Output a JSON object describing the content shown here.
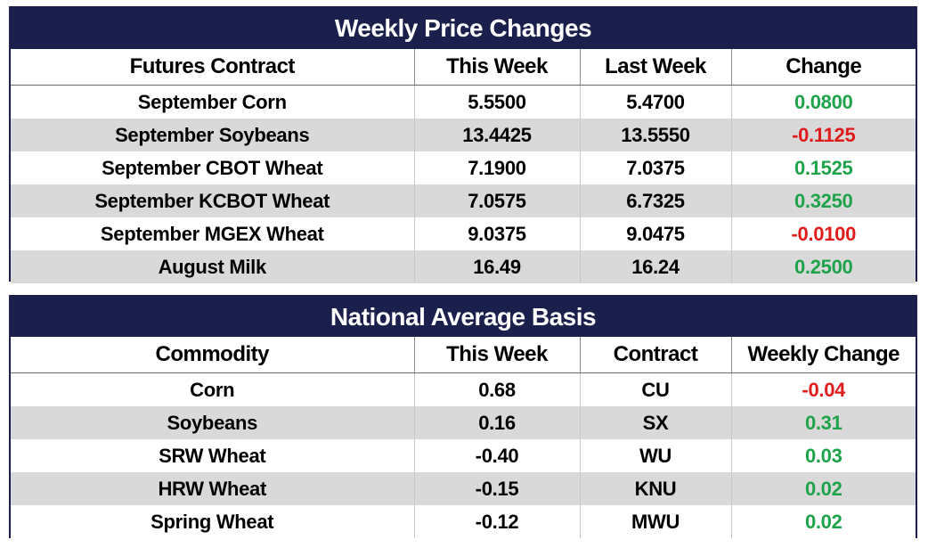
{
  "prices": {
    "title": "Weekly Price Changes",
    "headers": [
      "Futures Contract",
      "This Week",
      "Last Week",
      "Change"
    ],
    "rows": [
      {
        "contract": "September Corn",
        "this_week": "5.5500",
        "last_week": "5.4700",
        "change": "0.0800",
        "direction": "up"
      },
      {
        "contract": "September Soybeans",
        "this_week": "13.4425",
        "last_week": "13.5550",
        "change": "-0.1125",
        "direction": "down"
      },
      {
        "contract": "September CBOT Wheat",
        "this_week": "7.1900",
        "last_week": "7.0375",
        "change": "0.1525",
        "direction": "up"
      },
      {
        "contract": "September KCBOT Wheat",
        "this_week": "7.0575",
        "last_week": "6.7325",
        "change": "0.3250",
        "direction": "up"
      },
      {
        "contract": "September MGEX Wheat",
        "this_week": "9.0375",
        "last_week": "9.0475",
        "change": "-0.0100",
        "direction": "down"
      },
      {
        "contract": "August Milk",
        "this_week": "16.49",
        "last_week": "16.24",
        "change": "0.2500",
        "direction": "up"
      }
    ]
  },
  "basis": {
    "title": "National Average Basis",
    "headers": [
      "Commodity",
      "This Week",
      "Contract",
      "Weekly Change"
    ],
    "rows": [
      {
        "commodity": "Corn",
        "this_week": "0.68",
        "contract": "CU",
        "weekly_change": "-0.04",
        "direction": "down"
      },
      {
        "commodity": "Soybeans",
        "this_week": "0.16",
        "contract": "SX",
        "weekly_change": "0.31",
        "direction": "up"
      },
      {
        "commodity": "SRW Wheat",
        "this_week": "-0.40",
        "contract": "WU",
        "weekly_change": "0.03",
        "direction": "up"
      },
      {
        "commodity": "HRW Wheat",
        "this_week": "-0.15",
        "contract": "KNU",
        "weekly_change": "0.02",
        "direction": "up"
      },
      {
        "commodity": "Spring Wheat",
        "this_week": "-0.12",
        "contract": "MWU",
        "weekly_change": "0.02",
        "direction": "up"
      }
    ]
  },
  "colors": {
    "header_navy": "#1b1f4b",
    "positive": "#1fa34a",
    "negative": "#e01b1b",
    "stripe": "#d9d9d9"
  }
}
